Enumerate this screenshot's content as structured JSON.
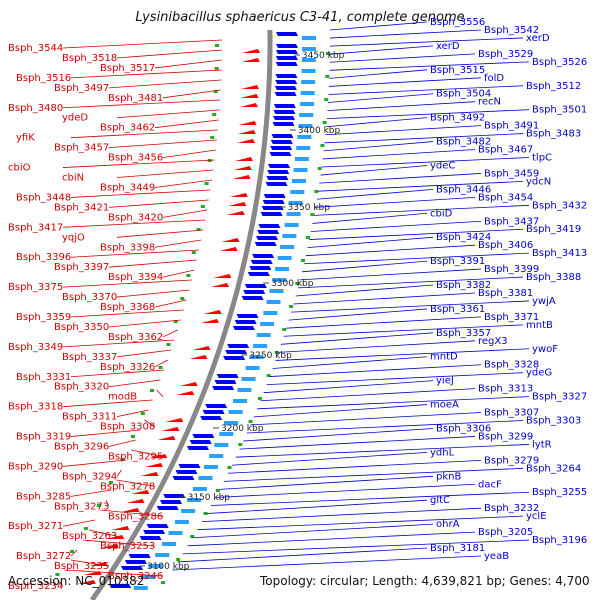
{
  "title": "Lysinibacillus sphaericus C3-41, complete genome",
  "footer": {
    "accession": "Accession: NC_010382",
    "topology": "Topology: circular; Length: 4,639,821 bp; Genes: 4,700"
  },
  "colors": {
    "left_labels": "#d10000",
    "right_labels": "#0000cc",
    "backbone": "#888888",
    "minus_strand": "#ff0000",
    "plus_strand": "#0000ff",
    "scale_text": "#222222"
  },
  "scale_ticks": [
    "3450 kbp",
    "3400 kbp",
    "3350 kbp",
    "3300 kbp",
    "3250 kbp",
    "3200 kbp",
    "3150 kbp",
    "3100 kbp"
  ],
  "left_labels": [
    "Bsph_3544",
    "Bsph_3518",
    "Bsph_3517",
    "Bsph_3516",
    "Bsph_3497",
    "Bsph_3481",
    "Bsph_3480",
    "ydeD",
    "Bsph_3462",
    "yfiK",
    "Bsph_3457",
    "Bsph_3456",
    "cbiO",
    "cbiN",
    "Bsph_3449",
    "Bsph_3448",
    "Bsph_3421",
    "Bsph_3420",
    "Bsph_3417",
    "yqjO",
    "Bsph_3398",
    "Bsph_3396",
    "Bsph_3397",
    "Bsph_3394",
    "Bsph_3375",
    "Bsph_3370",
    "Bsph_3368",
    "Bsph_3359",
    "Bsph_3350",
    "Bsph_3362",
    "Bsph_3349",
    "Bsph_3337",
    "Bsph_3326",
    "Bsph_3331",
    "Bsph_3320",
    "modB",
    "Bsph_3318",
    "Bsph_3311",
    "Bsph_3308",
    "Bsph_3319",
    "Bsph_3296",
    "Bsph_3295",
    "Bsph_3290",
    "Bsph_3294",
    "Bsph_3278",
    "Bsph_3285",
    "Bsph_3273",
    "Bsph_3286",
    "Bsph_3271",
    "Bsph_3263",
    "Bsph_3253",
    "Bsph_3272",
    "Bsph_3235",
    "Bsph_3246",
    "Bsph_3234"
  ],
  "right_labels": [
    "Bsph_3556",
    "Bsph_3542",
    "xerD",
    "xerD",
    "Bsph_3529",
    "Bsph_3526",
    "Bsph_3515",
    "folD",
    "Bsph_3512",
    "Bsph_3504",
    "recN",
    "Bsph_3501",
    "Bsph_3492",
    "Bsph_3491",
    "Bsph_3483",
    "Bsph_3482",
    "Bsph_3467",
    "tlpC",
    "ydeC",
    "Bsph_3459",
    "ydcN",
    "Bsph_3446",
    "Bsph_3454",
    "Bsph_3432",
    "cbiD",
    "Bsph_3437",
    "Bsph_3419",
    "Bsph_3424",
    "Bsph_3406",
    "Bsph_3413",
    "Bsph_3391",
    "Bsph_3399",
    "Bsph_3388",
    "Bsph_3382",
    "Bsph_3381",
    "ywjA",
    "Bsph_3361",
    "Bsph_3371",
    "mntB",
    "Bsph_3357",
    "regX3",
    "ywoF",
    "mntD",
    "Bsph_3328",
    "ydeG",
    "yieJ",
    "Bsph_3313",
    "Bsph_3327",
    "moeA",
    "Bsph_3307",
    "Bsph_3303",
    "Bsph_3306",
    "Bsph_3299",
    "lytR",
    "ydhL",
    "Bsph_3279",
    "Bsph_3264",
    "pknB",
    "dacF",
    "Bsph_3255",
    "gltC",
    "Bsph_3232",
    "yclE",
    "ohrA",
    "Bsph_3205",
    "Bsph_3196",
    "Bsph_3181",
    "yeaB"
  ]
}
